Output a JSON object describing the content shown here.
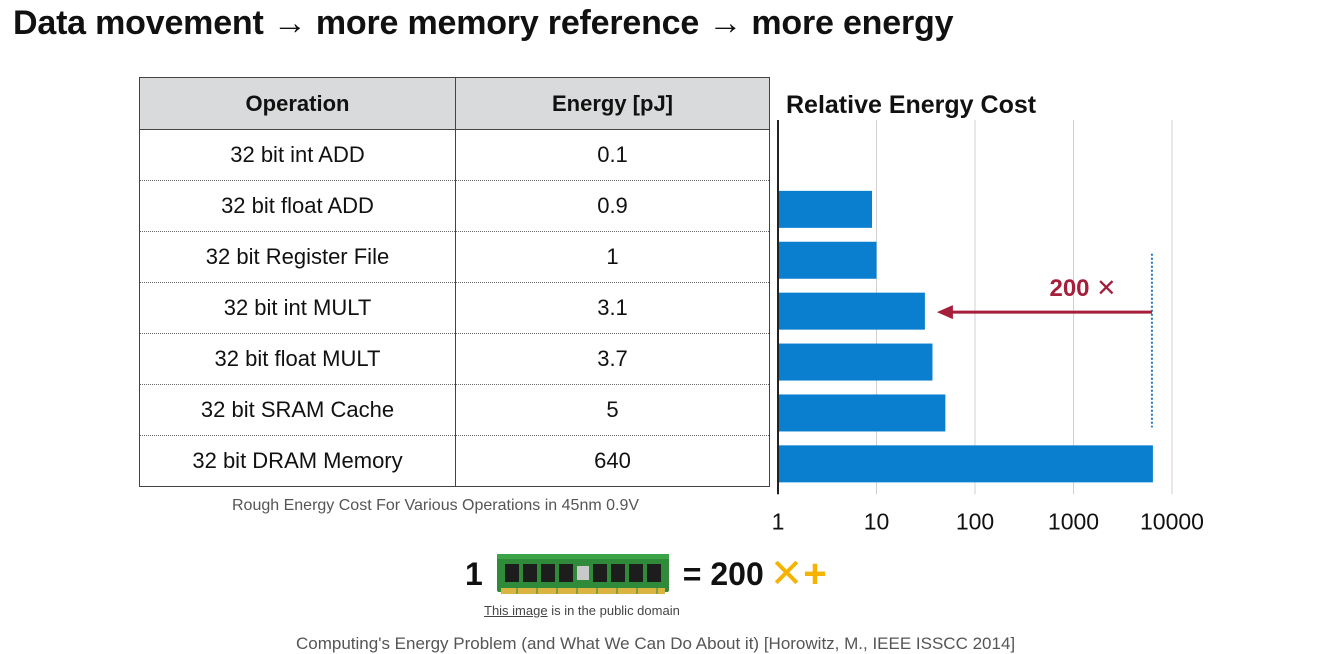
{
  "title": "Data movement → more memory reference → more energy",
  "table": {
    "headers": [
      "Operation",
      "Energy [pJ]"
    ],
    "rows": [
      [
        "32 bit int ADD",
        "0.1"
      ],
      [
        "32 bit float ADD",
        "0.9"
      ],
      [
        "32 bit Register File",
        "1"
      ],
      [
        "32 bit int MULT",
        "3.1"
      ],
      [
        "32 bit float MULT",
        "3.7"
      ],
      [
        "32 bit SRAM Cache",
        "5"
      ],
      [
        "32 bit DRAM Memory",
        "640"
      ]
    ],
    "caption": "Rough Energy Cost For Various Operations in 45nm 0.9V"
  },
  "chart_data": {
    "type": "bar",
    "orientation": "horizontal",
    "title": "Relative Energy Cost",
    "x_scale": "log",
    "xlim": [
      1,
      10000
    ],
    "x_ticks": [
      "1",
      "10",
      "100",
      "1000",
      "10000"
    ],
    "grid": true,
    "categories": [
      "32 bit int ADD",
      "32 bit float ADD",
      "32 bit Register File",
      "32 bit int MULT",
      "32 bit float MULT",
      "32 bit SRAM Cache",
      "32 bit DRAM Memory"
    ],
    "values": [
      1,
      9,
      10,
      31,
      37,
      50,
      6400
    ],
    "bar_color": "#0a7fd0",
    "annotation": {
      "text": "200 ✕",
      "from_value": 6400,
      "to_value": 31,
      "color": "#a51e3a"
    }
  },
  "equation": {
    "left": "1",
    "right": "= 200",
    "icons": "✕+",
    "icon_names": [
      "multiply-icon",
      "plus-icon"
    ],
    "icon_color": "#f5b300"
  },
  "image_credit": {
    "link": "This image",
    "rest": " is in the public domain"
  },
  "citation": "Computing's Energy Problem (and What We Can Do About it) [Horowitz, M., IEEE ISSCC 2014]"
}
